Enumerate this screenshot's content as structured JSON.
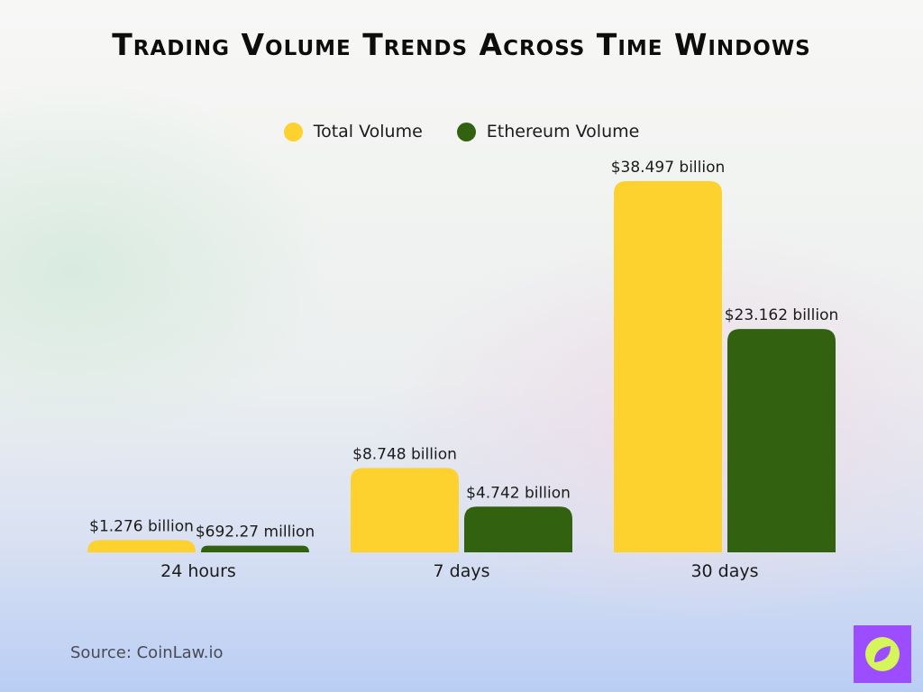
{
  "chart_data": {
    "type": "bar",
    "title": "Trading Volume Trends Across Time Windows",
    "categories": [
      "24 hours",
      "7 days",
      "30 days"
    ],
    "series": [
      {
        "name": "Total Volume",
        "color": "#fdd12e",
        "values": [
          1.276,
          8.748,
          38.497
        ],
        "labels": [
          "$1.276 billion",
          "$8.748 billion",
          "$38.497 billion"
        ]
      },
      {
        "name": "Ethereum Volume",
        "color": "#32620f",
        "values": [
          0.69227,
          4.742,
          23.162
        ],
        "labels": [
          "$692.27 million",
          "$4.742 billion",
          "$23.162 billion"
        ]
      }
    ],
    "unit": "billion USD",
    "ylim": [
      0,
      40
    ],
    "grid": false,
    "legend_position": "top-center"
  },
  "source": "Source: CoinLaw.io",
  "logo_icon": "compass-leaf-icon",
  "colors": {
    "logo_bg": "#9b4dff",
    "logo_circle": "#d6f55a"
  }
}
